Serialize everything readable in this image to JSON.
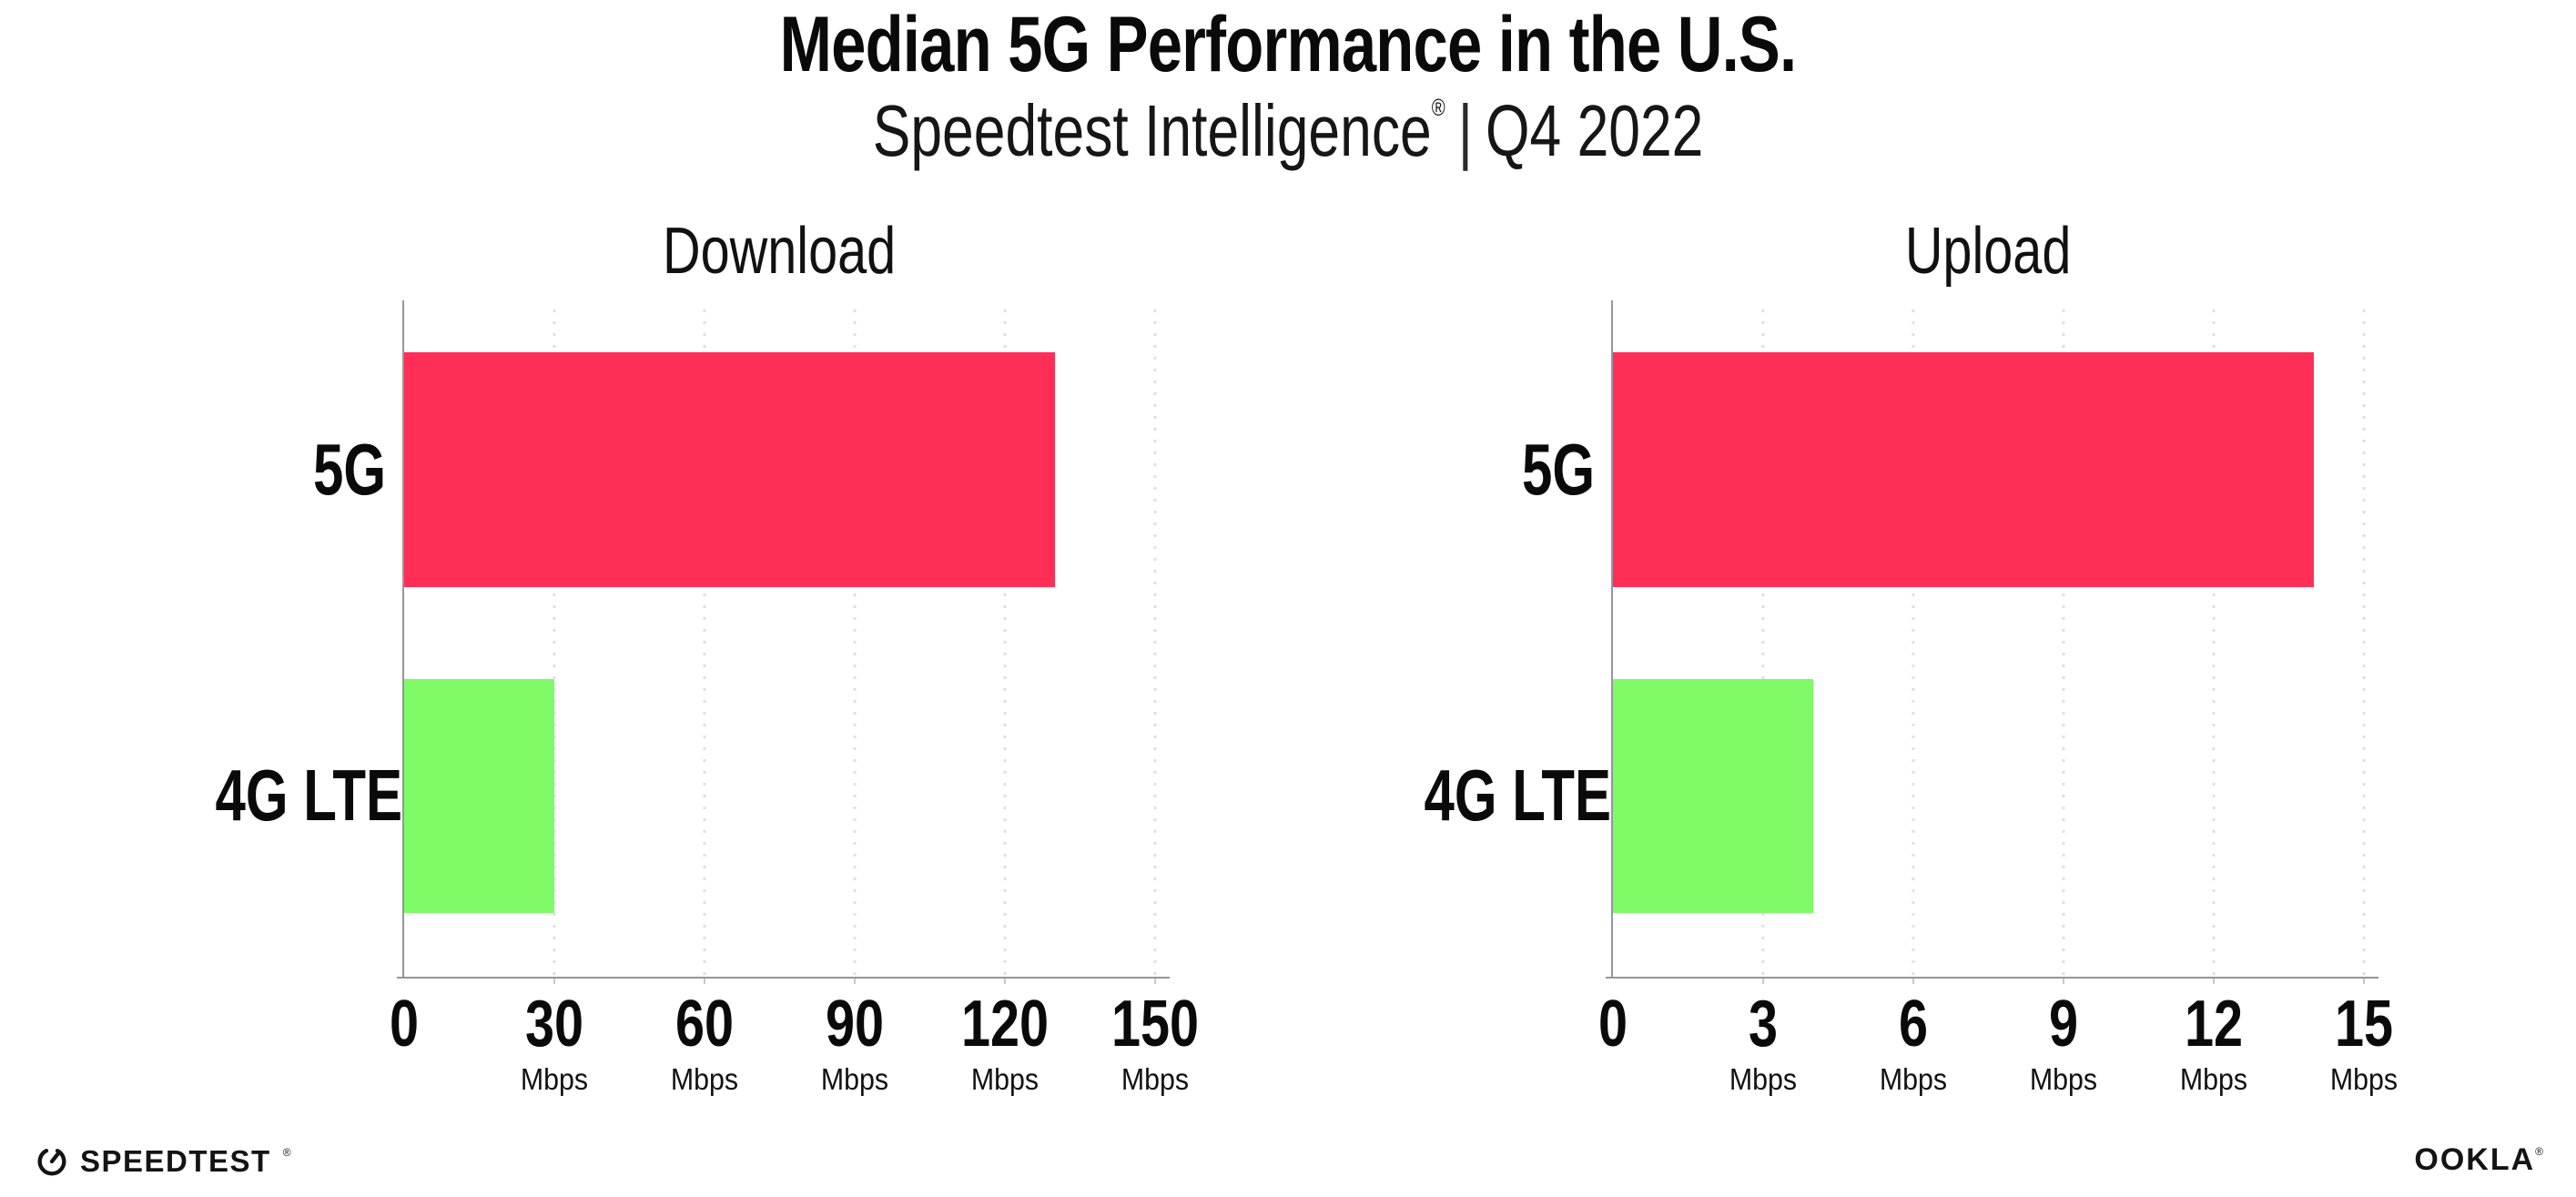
{
  "header": {
    "title": "Median 5G Performance in the U.S.",
    "subtitle_brand": "Speedtest Intelligence",
    "subtitle_reg": "®",
    "subtitle_divider": "|",
    "subtitle_period": "Q4 2022"
  },
  "chart_data": [
    {
      "type": "bar",
      "orientation": "horizontal",
      "title": "Download",
      "categories": [
        "5G",
        "4G LTE"
      ],
      "values": [
        130,
        30
      ],
      "unit": "Mbps",
      "xlim": [
        0,
        150
      ],
      "xticks": [
        0,
        30,
        60,
        90,
        120,
        150
      ],
      "xtick_unit": "Mbps",
      "grid": "vertical-dotted",
      "legend": "none",
      "bar_colors": [
        "#FF2E56",
        "#7EFB67"
      ]
    },
    {
      "type": "bar",
      "orientation": "horizontal",
      "title": "Upload",
      "categories": [
        "5G",
        "4G LTE"
      ],
      "values": [
        14,
        4
      ],
      "unit": "Mbps",
      "xlim": [
        0,
        15
      ],
      "xticks": [
        0,
        3,
        6,
        9,
        12,
        15
      ],
      "xtick_unit": "Mbps",
      "grid": "vertical-dotted",
      "legend": "none",
      "bar_colors": [
        "#FF2E56",
        "#7EFB67"
      ]
    }
  ],
  "footer": {
    "speedtest_label": "SPEEDTEST",
    "speedtest_mark": "®",
    "ookla_label": "OOKLA",
    "ookla_mark": "®"
  },
  "colors": {
    "bar_5g": "#FF2E56",
    "bar_4g_lte": "#7EFB67",
    "axis": "#95959E",
    "gridline": "#DFDFEA",
    "text": "#0A0A0A"
  }
}
